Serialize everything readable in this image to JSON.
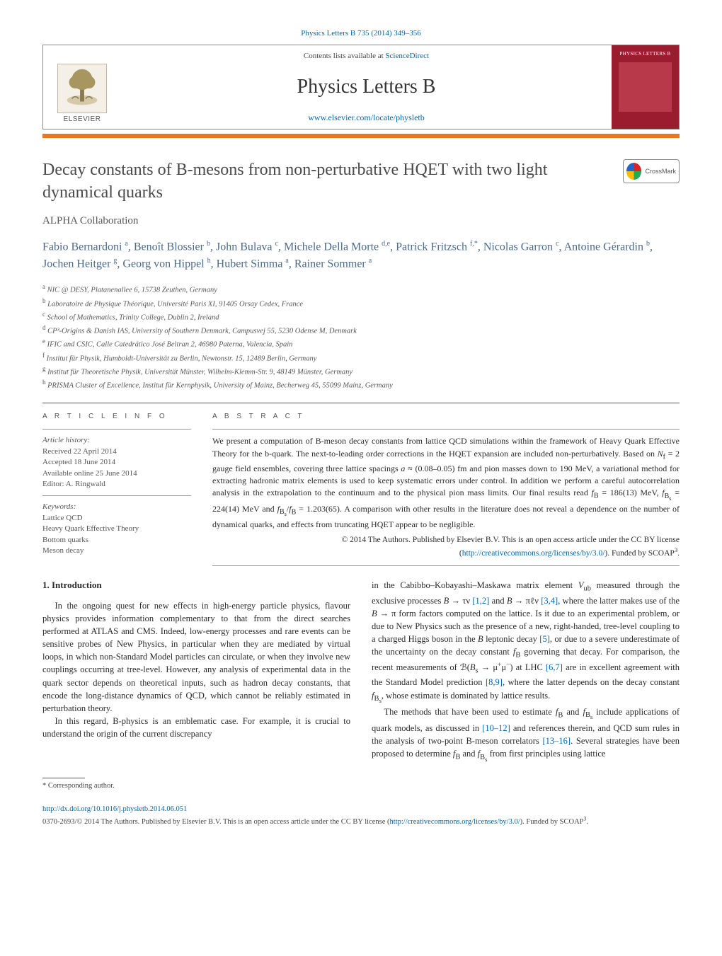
{
  "journal_ref": {
    "text": "Physics Letters B 735 (2014) 349–356",
    "href": "#"
  },
  "masthead": {
    "contents_prefix": "Contents lists available at ",
    "contents_link": "ScienceDirect",
    "journal_title": "Physics Letters B",
    "journal_home": "www.elsevier.com/locate/physletb",
    "publisher": "ELSEVIER",
    "cover_label": "PHYSICS LETTERS B"
  },
  "crossmark_label": "CrossMark",
  "title": "Decay constants of B-mesons from non-perturbative HQET with two light dynamical quarks",
  "collaboration": "ALPHA Collaboration",
  "authors_html": "Fabio Bernardoni <sup>a</sup>, Benoît Blossier <sup>b</sup>, John Bulava <sup>c</sup>, Michele Della Morte <sup>d,e</sup>, Patrick Fritzsch <sup>f,*</sup>, Nicolas Garron <sup>c</sup>, Antoine Gérardin <sup>b</sup>, Jochen Heitger <sup>g</sup>, Georg von Hippel <sup>h</sup>, Hubert Simma <sup>a</sup>, Rainer Sommer <sup>a</sup>",
  "affiliations": [
    {
      "key": "a",
      "text": "NIC @ DESY, Platanenallee 6, 15738 Zeuthen, Germany"
    },
    {
      "key": "b",
      "text": "Laboratoire de Physique Théorique, Université Paris XI, 91405 Orsay Cedex, France"
    },
    {
      "key": "c",
      "text": "School of Mathematics, Trinity College, Dublin 2, Ireland"
    },
    {
      "key": "d",
      "text": "CP³-Origins & Danish IAS, University of Southern Denmark, Campusvej 55, 5230 Odense M, Denmark"
    },
    {
      "key": "e",
      "text": "IFIC and CSIC, Calle Catedrático José Beltran 2, 46980 Paterna, Valencia, Spain"
    },
    {
      "key": "f",
      "text": "Institut für Physik, Humboldt-Universität zu Berlin, Newtonstr. 15, 12489 Berlin, Germany"
    },
    {
      "key": "g",
      "text": "Institut für Theoretische Physik, Universität Münster, Wilhelm-Klemm-Str. 9, 48149 Münster, Germany"
    },
    {
      "key": "h",
      "text": "PRISMA Cluster of Excellence, Institut für Kernphysik, University of Mainz, Becherweg 45, 55099 Mainz, Germany"
    }
  ],
  "article_info": {
    "heading": "A R T I C L E   I N F O",
    "history_label": "Article history:",
    "received": "Received 22 April 2014",
    "accepted": "Accepted 18 June 2014",
    "online": "Available online 25 June 2014",
    "editor": "Editor: A. Ringwald",
    "keywords_label": "Keywords:",
    "keywords": [
      "Lattice QCD",
      "Heavy Quark Effective Theory",
      "Bottom quarks",
      "Meson decay"
    ]
  },
  "abstract": {
    "heading": "A B S T R A C T",
    "text_html": "We present a computation of B-meson decay constants from lattice QCD simulations within the framework of Heavy Quark Effective Theory for the b-quark. The next-to-leading order corrections in the HQET expansion are included non-perturbatively. Based on <span class='ital'>N</span><sub>f</sub> = 2 gauge field ensembles, covering three lattice spacings <span class='ital'>a</span> ≈ (0.08–0.05) fm and pion masses down to 190 MeV, a variational method for extracting hadronic matrix elements is used to keep systematic errors under control. In addition we perform a careful autocorrelation analysis in the extrapolation to the continuum and to the physical pion mass limits. Our final results read <span class='ital'>f</span><sub>B</sub> = 186(13) MeV, <span class='ital'>f</span><sub>B<sub>s</sub></sub> = 224(14) MeV and <span class='ital'>f</span><sub>B<sub>s</sub></sub>/<span class='ital'>f</span><sub>B</sub> = 1.203(65). A comparison with other results in the literature does not reveal a dependence on the number of dynamical quarks, and effects from truncating HQET appear to be negligible.",
    "copyright_html": "© 2014 The Authors. Published by Elsevier B.V. This is an open access article under the CC BY license (<a href='#'>http://creativecommons.org/licenses/by/3.0/</a>). Funded by SCOAP<sup>3</sup>."
  },
  "body": {
    "section_heading": "1. Introduction",
    "p1": "In the ongoing quest for new effects in high-energy particle physics, flavour physics provides information complementary to that from the direct searches performed at ATLAS and CMS. Indeed, low-energy processes and rare events can be sensitive probes of New Physics, in particular when they are mediated by virtual loops, in which non-Standard Model particles can circulate, or when they involve new couplings occurring at tree-level. However, any analysis of experimental data in the quark sector depends on theoretical inputs, such as hadron decay constants, that encode the long-distance dynamics of QCD, which cannot be reliably estimated in perturbation theory.",
    "p2": "In this regard, B-physics is an emblematic case. For example, it is crucial to understand the origin of the current discrepancy",
    "p3_html": "in the Cabibbo–Kobayashi–Maskawa matrix element <span class='ital'>V</span><sub>ub</sub> measured through the exclusive processes <span class='ital'>B</span> → τν <span class='refcite'>[1,2]</span> and <span class='ital'>B</span> → πℓν <span class='refcite'>[3,4]</span>, where the latter makes use of the <span class='ital'>B</span> → π form factors computed on the lattice. Is it due to an experimental problem, or due to New Physics such as the presence of a new, right-handed, tree-level coupling to a charged Higgs boson in the <span class='ital'>B</span> leptonic decay <span class='refcite'>[5]</span>, or due to a severe underestimate of the uncertainty on the decay constant <span class='ital'>f</span><sub>B</sub> governing that decay. For comparison, the recent measurements of ℬ(<span class='ital'>B</span><sub>s</sub> → μ<sup>+</sup>μ<sup>−</sup>) at LHC <span class='refcite'>[6,7]</span> are in excellent agreement with the Standard Model prediction <span class='refcite'>[8,9]</span>, where the latter depends on the decay constant <span class='ital'>f</span><sub>B<sub>s</sub></sub>, whose estimate is dominated by lattice results.",
    "p4_html": "The methods that have been used to estimate <span class='ital'>f</span><sub>B</sub> and <span class='ital'>f</span><sub>B<sub>s</sub></sub> include applications of quark models, as discussed in <span class='refcite'>[10–12]</span> and references therein, and QCD sum rules in the analysis of two-point B-meson correlators <span class='refcite'>[13–16]</span>. Several strategies have been proposed to determine <span class='ital'>f</span><sub>B</sub> and <span class='ital'>f</span><sub>B<sub>s</sub></sub> from first principles using lattice"
  },
  "footnote": {
    "marker": "*",
    "text": "Corresponding author."
  },
  "doi": {
    "link": "http://dx.doi.org/10.1016/j.physletb.2014.06.051",
    "line2_html": "0370-2693/© 2014 The Authors. Published by Elsevier B.V. This is an open access article under the CC BY license (<a href='#'>http://creativecommons.org/licenses/by/3.0/</a>). Funded by SCOAP<sup>3</sup>."
  },
  "colors": {
    "orange_bar": "#e87722",
    "cover_bg": "#9b1c2e",
    "link": "#0066aa",
    "author": "#4a6a8a"
  }
}
